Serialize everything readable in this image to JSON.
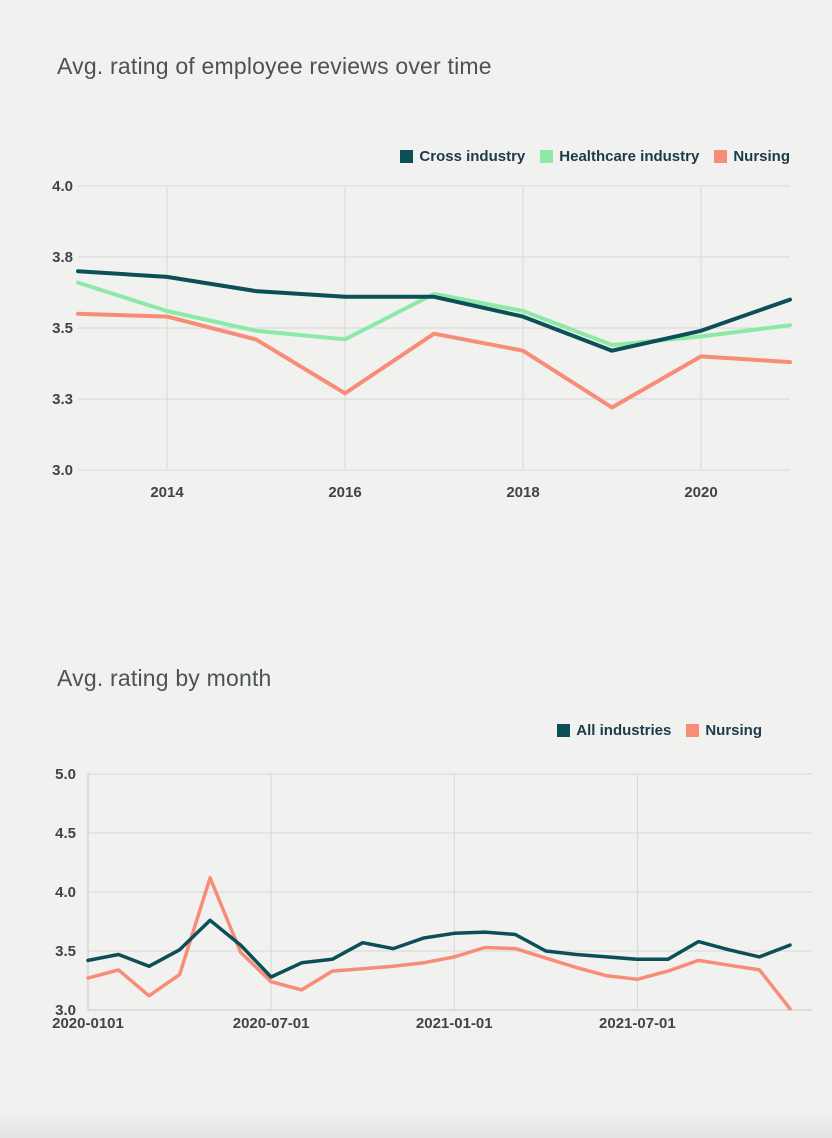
{
  "chart_data": [
    {
      "type": "line",
      "title": "Avg. rating of employee reviews over time",
      "x": [
        2013,
        2014,
        2015,
        2016,
        2017,
        2018,
        2019,
        2020,
        2021
      ],
      "xlim": [
        2013,
        2021
      ],
      "ylim": [
        3.0,
        4.0
      ],
      "grid": true,
      "legend_position": "top-right",
      "y_ticks": [
        4.0,
        3.75,
        3.5,
        3.25,
        3.0
      ],
      "y_tick_labels": [
        "4.0",
        "3.8",
        "3.5",
        "3.3",
        "3.0"
      ],
      "x_ticks": [
        2014,
        2016,
        2018,
        2020
      ],
      "x_tick_labels": [
        "2014",
        "2016",
        "2018",
        "2020"
      ],
      "series": [
        {
          "name": "Cross industry",
          "color": "#0d4f57",
          "values": [
            3.7,
            3.68,
            3.63,
            3.61,
            3.61,
            3.54,
            3.42,
            3.49,
            3.6
          ]
        },
        {
          "name": "Healthcare industry",
          "color": "#8de9a6",
          "values": [
            3.66,
            3.56,
            3.49,
            3.46,
            3.62,
            3.56,
            3.44,
            3.47,
            3.51
          ]
        },
        {
          "name": "Nursing",
          "color": "#f78d77",
          "values": [
            3.55,
            3.54,
            3.46,
            3.27,
            3.48,
            3.42,
            3.22,
            3.4,
            3.38
          ]
        }
      ]
    },
    {
      "type": "line",
      "title": "Avg. rating by month",
      "x": [
        "2020-01",
        "2020-02",
        "2020-03",
        "2020-04",
        "2020-05",
        "2020-06",
        "2020-07",
        "2020-08",
        "2020-09",
        "2020-10",
        "2020-11",
        "2020-12",
        "2021-01",
        "2021-02",
        "2021-03",
        "2021-04",
        "2021-05",
        "2021-06",
        "2021-07",
        "2021-08",
        "2021-09",
        "2021-10",
        "2021-11",
        "2021-12"
      ],
      "ylim": [
        3.0,
        5.0
      ],
      "grid": true,
      "legend_position": "top-right",
      "y_ticks": [
        5.0,
        4.5,
        4.0,
        3.5,
        3.0
      ],
      "y_tick_labels": [
        "5.0",
        "4.5",
        "4.0",
        "3.5",
        "3.0"
      ],
      "x_ticks": [
        "2020-01",
        "2020-07",
        "2021-01",
        "2021-07"
      ],
      "x_tick_labels": [
        "2020-0101",
        "2020-07-01",
        "2021-01-01",
        "2021-07-01"
      ],
      "series": [
        {
          "name": "All industries",
          "color": "#0d4f57",
          "values": [
            3.42,
            3.47,
            3.37,
            3.51,
            3.76,
            3.55,
            3.28,
            3.4,
            3.43,
            3.57,
            3.52,
            3.61,
            3.65,
            3.66,
            3.64,
            3.5,
            3.47,
            3.45,
            3.43,
            3.43,
            3.58,
            3.51,
            3.45,
            3.55
          ]
        },
        {
          "name": "Nursing",
          "color": "#f78d77",
          "values": [
            3.27,
            3.34,
            3.12,
            3.3,
            4.12,
            3.49,
            3.24,
            3.17,
            3.33,
            3.35,
            3.37,
            3.4,
            3.45,
            3.53,
            3.52,
            3.44,
            3.36,
            3.29,
            3.26,
            3.33,
            3.42,
            3.38,
            3.34,
            3.01
          ]
        }
      ]
    }
  ],
  "colors": {
    "background": "#f1f1ef",
    "gridline": "#d8d8d5",
    "axis_line": "#c7c7c4",
    "tick_text": "#3f4448",
    "title_text": "#4c5257",
    "legend_text": "#1b3b4b"
  }
}
